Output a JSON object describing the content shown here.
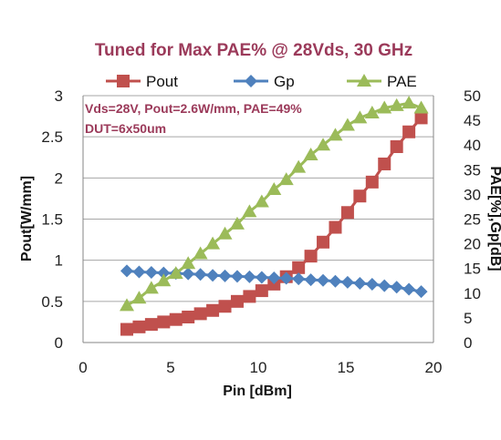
{
  "chart_data": {
    "type": "line",
    "title": "Tuned for Max PAE% @ 28Vds, 30 GHz",
    "xlabel": "Pin [dBm]",
    "ylabel_left": "Pout[W/mm]",
    "ylabel_right": "PAE[%],Gp[dB]",
    "xlim": [
      0,
      20
    ],
    "xticks": [
      "0",
      "5",
      "10",
      "15",
      "20"
    ],
    "ylim_left": [
      0,
      3
    ],
    "yticks_left": [
      "0",
      "0.5",
      "1",
      "1.5",
      "2",
      "2.5",
      "3"
    ],
    "ylim_right": [
      0,
      50
    ],
    "yticks_right": [
      "0",
      "5",
      "10",
      "15",
      "20",
      "25",
      "30",
      "35",
      "40",
      "45",
      "50"
    ],
    "grid": "horizontal",
    "legend_position": "top",
    "annotation": [
      "Vds=28V, Pout=2.6W/mm, PAE=49%",
      "DUT=6x50um"
    ],
    "x": [
      2.5,
      3.2,
      3.9,
      4.6,
      5.3,
      6.0,
      6.7,
      7.4,
      8.1,
      8.8,
      9.5,
      10.2,
      10.9,
      11.6,
      12.3,
      13.0,
      13.7,
      14.4,
      15.1,
      15.8,
      16.5,
      17.2,
      17.9,
      18.6,
      19.3
    ],
    "series": [
      {
        "name": "Pout",
        "axis": "left",
        "marker": "square",
        "color": "#c0504d",
        "values": [
          0.16,
          0.19,
          0.22,
          0.25,
          0.28,
          0.31,
          0.35,
          0.39,
          0.44,
          0.5,
          0.56,
          0.63,
          0.71,
          0.8,
          0.91,
          1.05,
          1.22,
          1.4,
          1.58,
          1.78,
          1.95,
          2.17,
          2.38,
          2.56,
          2.73
        ]
      },
      {
        "name": "Gp",
        "axis": "right",
        "marker": "diamond",
        "color": "#4f81bd",
        "values": [
          14.5,
          14.3,
          14.2,
          14.1,
          14.0,
          13.9,
          13.8,
          13.6,
          13.5,
          13.4,
          13.3,
          13.2,
          13.1,
          13.0,
          12.9,
          12.7,
          12.6,
          12.4,
          12.2,
          12.0,
          11.8,
          11.5,
          11.2,
          10.8,
          10.3
        ]
      },
      {
        "name": "PAE",
        "axis": "right",
        "marker": "triangle",
        "color": "#9bbb59",
        "values": [
          7.5,
          9.0,
          11.0,
          12.5,
          14.0,
          16.0,
          18.0,
          20.0,
          22.0,
          24.0,
          26.5,
          28.5,
          31.0,
          33.0,
          35.5,
          38.0,
          40.0,
          42.0,
          44.0,
          45.5,
          46.5,
          47.5,
          48.0,
          48.5,
          47.5
        ]
      }
    ]
  }
}
